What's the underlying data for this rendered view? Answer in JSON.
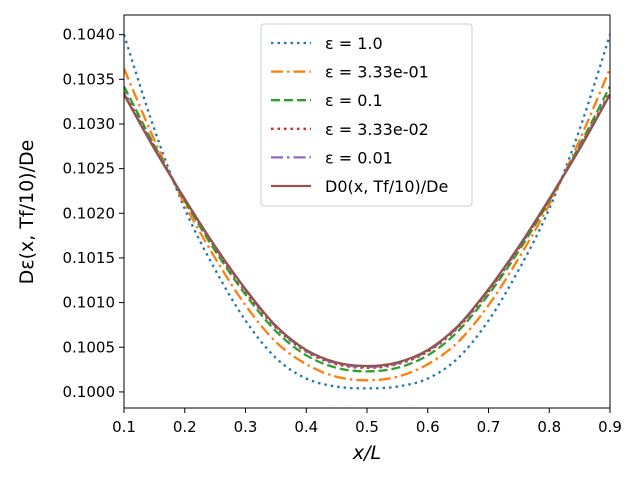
{
  "chart_data": {
    "type": "line",
    "title": "",
    "xlabel": "x/L",
    "ylabel": "Dε(x, Tf/10)/De",
    "xlim": [
      0.1,
      0.9
    ],
    "ylim": [
      0.09982,
      0.10422
    ],
    "xticks": [
      0.1,
      0.2,
      0.3,
      0.4,
      0.5,
      0.6,
      0.7,
      0.8,
      0.9
    ],
    "xtick_labels": [
      "0.1",
      "0.2",
      "0.3",
      "0.4",
      "0.5",
      "0.6",
      "0.7",
      "0.8",
      "0.9"
    ],
    "yticks": [
      0.1,
      0.1005,
      0.101,
      0.1015,
      0.102,
      0.1025,
      0.103,
      0.1035,
      0.104
    ],
    "ytick_labels": [
      "0.1000",
      "0.1005",
      "0.1010",
      "0.1015",
      "0.1020",
      "0.1025",
      "0.1030",
      "0.1035",
      "0.1040"
    ],
    "legend_position": "top-center",
    "grid": false,
    "x": [
      0.1,
      0.15,
      0.2,
      0.25,
      0.3,
      0.35,
      0.4,
      0.45,
      0.5,
      0.55,
      0.6,
      0.65,
      0.7,
      0.75,
      0.8,
      0.85,
      0.9
    ],
    "series": [
      {
        "name": "ε = 1.0",
        "color": "#1f77b4",
        "style": "dotted",
        "values": [
          0.104,
          0.10294,
          0.10205,
          0.10137,
          0.1008,
          0.10038,
          0.10015,
          0.10006,
          0.10004,
          0.10006,
          0.10015,
          0.10038,
          0.1008,
          0.10137,
          0.10205,
          0.10294,
          0.104
        ]
      },
      {
        "name": "ε = 3.33e-01",
        "color": "#ff7f0e",
        "style": "dashdot",
        "values": [
          0.10362,
          0.10282,
          0.1021,
          0.1015,
          0.10097,
          0.10056,
          0.10031,
          0.10017,
          0.10013,
          0.10017,
          0.10031,
          0.10056,
          0.10097,
          0.1015,
          0.1021,
          0.10282,
          0.10362
        ]
      },
      {
        "name": "ε = 0.1",
        "color": "#2ca02c",
        "style": "dashed",
        "values": [
          0.10342,
          0.10276,
          0.10214,
          0.10158,
          0.10109,
          0.10068,
          0.10041,
          0.10027,
          0.10023,
          0.10027,
          0.10041,
          0.10068,
          0.10109,
          0.10158,
          0.10214,
          0.10276,
          0.10342
        ]
      },
      {
        "name": "ε = 3.33e-02",
        "color": "#d62728",
        "style": "dotted",
        "values": [
          0.10336,
          0.10274,
          0.10215,
          0.10161,
          0.10112,
          0.10072,
          0.10045,
          0.10031,
          0.10027,
          0.10031,
          0.10045,
          0.10072,
          0.10112,
          0.10161,
          0.10215,
          0.10274,
          0.10336
        ]
      },
      {
        "name": "ε = 0.01",
        "color": "#9467bd",
        "style": "dashdot",
        "values": [
          0.10334,
          0.10273,
          0.10216,
          0.10162,
          0.10114,
          0.10073,
          0.10046,
          0.10032,
          0.10028,
          0.10032,
          0.10046,
          0.10073,
          0.10114,
          0.10162,
          0.10216,
          0.10273,
          0.10334
        ]
      },
      {
        "name": "D0(x, Tf/10)/De",
        "color": "#8c564b",
        "style": "solid",
        "values": [
          0.10333,
          0.10272,
          0.10216,
          0.10163,
          0.10115,
          0.10074,
          0.10047,
          0.10033,
          0.10029,
          0.10033,
          0.10047,
          0.10074,
          0.10115,
          0.10163,
          0.10216,
          0.10272,
          0.10333
        ]
      }
    ]
  }
}
